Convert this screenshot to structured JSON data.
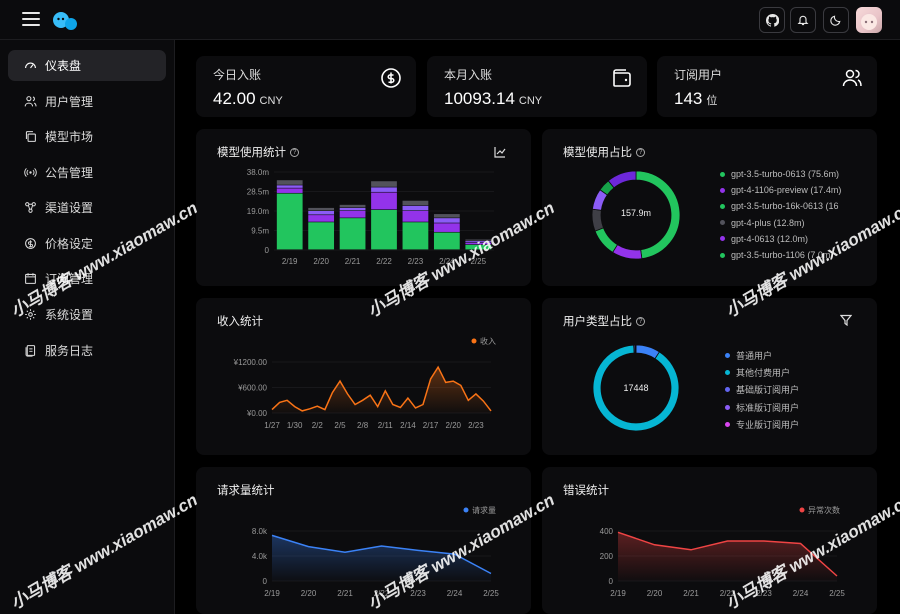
{
  "header": {
    "icons": [
      "menu-icon",
      "logo-icon",
      "github-icon",
      "bell-icon",
      "moon-icon",
      "avatar"
    ]
  },
  "sidebar": {
    "items": [
      {
        "label": "仪表盘",
        "icon": "dashboard-icon"
      },
      {
        "label": "用户管理",
        "icon": "users-icon"
      },
      {
        "label": "模型市场",
        "icon": "copy-icon"
      },
      {
        "label": "公告管理",
        "icon": "broadcast-icon"
      },
      {
        "label": "渠道设置",
        "icon": "nodes-icon"
      },
      {
        "label": "价格设定",
        "icon": "price-icon"
      },
      {
        "label": "订阅管理",
        "icon": "calendar-icon"
      },
      {
        "label": "系统设置",
        "icon": "gear-icon"
      },
      {
        "label": "服务日志",
        "icon": "log-icon"
      }
    ]
  },
  "stats": {
    "today": {
      "label": "今日入账",
      "value": "42.00",
      "unit": "CNY"
    },
    "month": {
      "label": "本月入账",
      "value": "10093.14",
      "unit": "CNY"
    },
    "subscribers": {
      "label": "订阅用户",
      "value": "143",
      "unit": "位"
    }
  },
  "model_usage": {
    "title": "模型使用统计",
    "chart_data": {
      "type": "bar",
      "categories": [
        "2/19",
        "2/20",
        "2/21",
        "2/22",
        "2/23",
        "2/24",
        "2/25"
      ],
      "ylim": [
        0,
        38
      ],
      "yticks": [
        "0",
        "9.5m",
        "19.0m",
        "28.5m",
        "38.0m"
      ],
      "series": [
        {
          "color": "#22c55e",
          "values": [
            27.5,
            13.5,
            15.5,
            19.5,
            13.5,
            8.5,
            2.5
          ]
        },
        {
          "color": "#9333ea",
          "values": [
            2.5,
            3.5,
            3.5,
            8.5,
            5.5,
            4.5,
            1.0
          ]
        },
        {
          "color": "#8b5cf6",
          "values": [
            1.5,
            2.0,
            1.5,
            2.5,
            2.5,
            2.5,
            0.8
          ]
        },
        {
          "color": "#52525b",
          "values": [
            2.5,
            1.5,
            1.5,
            3.0,
            2.5,
            2.0,
            0.8
          ]
        }
      ]
    }
  },
  "model_share": {
    "title": "模型使用占比",
    "center": "157.9m",
    "legend": [
      {
        "label": "gpt-3.5-turbo-0613 (75.6m)",
        "color": "#22c55e"
      },
      {
        "label": "gpt-4-1106-preview (17.4m)",
        "color": "#9333ea"
      },
      {
        "label": "gpt-3.5-turbo-16k-0613 (16",
        "color": "#22c55e"
      },
      {
        "label": "gpt-4-plus (12.8m)",
        "color": "#52525b"
      },
      {
        "label": "gpt-4-0613 (12.0m)",
        "color": "#9333ea"
      },
      {
        "label": "gpt-3.5-turbo-1106 (7.0m)",
        "color": "#22c55e"
      }
    ],
    "chart_data": {
      "type": "pie",
      "values": [
        75.6,
        17.4,
        16.0,
        12.8,
        12.0,
        7.0,
        17.1
      ],
      "colors": [
        "#22c55e",
        "#9333ea",
        "#22c55e",
        "#3f3f46",
        "#8b5cf6",
        "#16a34a",
        "#6d28d9"
      ]
    }
  },
  "income": {
    "title": "收入统计",
    "legend": "收入",
    "chart_data": {
      "type": "area",
      "x": [
        "1/27",
        "1/28",
        "1/29",
        "1/30",
        "1/31",
        "2/1",
        "2/2",
        "2/3",
        "2/4",
        "2/5",
        "2/6",
        "2/7",
        "2/8",
        "2/9",
        "2/10",
        "2/11",
        "2/12",
        "2/13",
        "2/14",
        "2/15",
        "2/16",
        "2/17",
        "2/18",
        "2/19",
        "2/20",
        "2/21",
        "2/22",
        "2/23",
        "2/24",
        "2/25"
      ],
      "y": [
        80,
        250,
        300,
        150,
        50,
        100,
        160,
        80,
        480,
        750,
        450,
        200,
        300,
        420,
        150,
        520,
        200,
        130,
        350,
        120,
        200,
        800,
        1080,
        720,
        750,
        650,
        300,
        450,
        280,
        50
      ],
      "xticks": [
        "1/27",
        "1/30",
        "2/2",
        "2/5",
        "2/8",
        "2/11",
        "2/14",
        "2/17",
        "2/20",
        "2/23"
      ],
      "yticks": [
        "¥0.00",
        "¥600.00",
        "¥1200.00"
      ],
      "ylim": [
        0,
        1200
      ],
      "color": "#f97316"
    }
  },
  "user_type": {
    "title": "用户类型占比",
    "center": "17448",
    "legend": [
      {
        "label": "普通用户",
        "color": "#3b82f6"
      },
      {
        "label": "其他付费用户",
        "color": "#06b6d4"
      },
      {
        "label": "基础版订阅用户",
        "color": "#6366f1"
      },
      {
        "label": "标准版订阅用户",
        "color": "#8b5cf6"
      },
      {
        "label": "专业版订阅用户",
        "color": "#d946ef"
      }
    ],
    "chart_data": {
      "type": "pie",
      "values": [
        1600,
        15700,
        80,
        40,
        28
      ],
      "colors": [
        "#3b82f6",
        "#06b6d4",
        "#6366f1",
        "#8b5cf6",
        "#d946ef"
      ]
    }
  },
  "requests": {
    "title": "请求量统计",
    "legend": "请求量",
    "chart_data": {
      "type": "area",
      "x": [
        "2/19",
        "2/20",
        "2/21",
        "2/22",
        "2/23",
        "2/24",
        "2/25"
      ],
      "y": [
        7300,
        5500,
        4600,
        5600,
        4900,
        4300,
        1200
      ],
      "yticks": [
        "0",
        "4.0k",
        "8.0k"
      ],
      "ylim": [
        0,
        8000
      ],
      "color": "#3b82f6"
    }
  },
  "errors": {
    "title": "错误统计",
    "legend": "异常次数",
    "chart_data": {
      "type": "area",
      "x": [
        "2/19",
        "2/20",
        "2/21",
        "2/22",
        "2/23",
        "2/24",
        "2/25"
      ],
      "y": [
        390,
        290,
        250,
        320,
        320,
        300,
        40
      ],
      "yticks": [
        "0",
        "200",
        "400"
      ],
      "ylim": [
        0,
        400
      ],
      "color": "#ef4444"
    }
  },
  "watermarks": [
    "小马博客 www.xiaomaw.cn"
  ]
}
